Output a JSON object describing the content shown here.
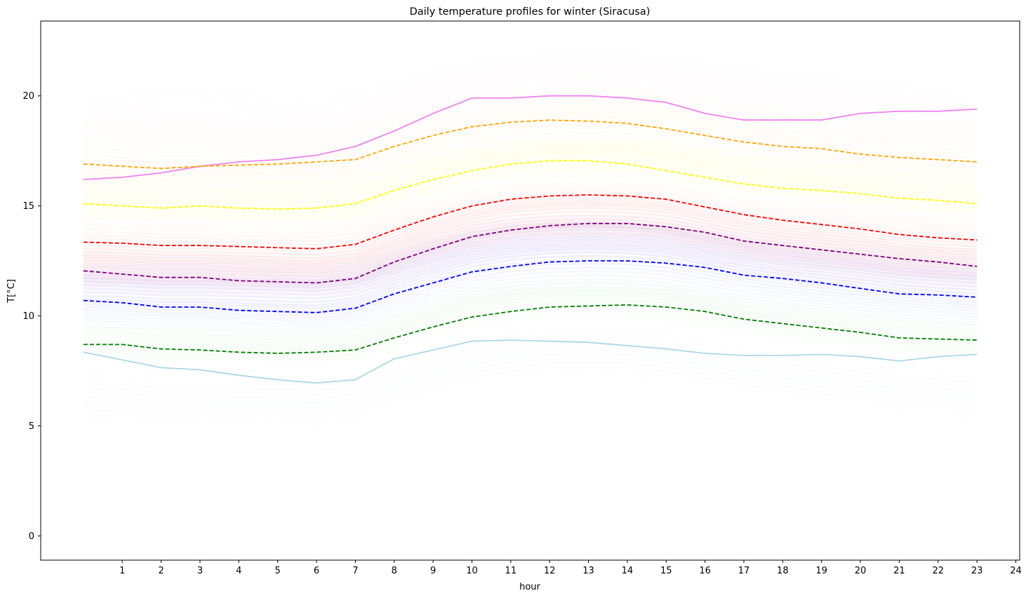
{
  "chart_data": {
    "type": "line",
    "title": "Daily temperature profiles for winter (Siracusa)",
    "xlabel": "hour",
    "ylabel": "T[°C]",
    "xlim": [
      -1.1,
      24.1
    ],
    "ylim": [
      -1.1,
      23.4
    ],
    "xticks": [
      1,
      2,
      3,
      4,
      5,
      6,
      7,
      8,
      9,
      10,
      11,
      12,
      13,
      14,
      15,
      16,
      17,
      18,
      19,
      20,
      21,
      22,
      23,
      24
    ],
    "yticks": [
      0,
      5,
      10,
      15,
      20
    ],
    "grid": false,
    "legend": "none",
    "x": [
      0,
      1,
      2,
      3,
      4,
      5,
      6,
      7,
      8,
      9,
      10,
      11,
      12,
      13,
      14,
      15,
      16,
      17,
      18,
      19,
      20,
      21,
      22,
      23
    ],
    "series": [
      {
        "color": "#ee82ee",
        "dashed": false,
        "values": [
          16.2,
          16.3,
          16.5,
          16.8,
          17.0,
          17.1,
          17.3,
          17.7,
          18.4,
          19.2,
          19.9,
          19.9,
          20.0,
          20.0,
          19.9,
          19.7,
          19.2,
          18.9,
          18.9,
          18.9,
          19.2,
          19.3,
          19.3,
          19.4
        ]
      },
      {
        "color": "#ffa500",
        "dashed": true,
        "values": [
          16.9,
          16.8,
          16.7,
          16.8,
          16.85,
          16.9,
          17.0,
          17.1,
          17.7,
          18.2,
          18.6,
          18.8,
          18.9,
          18.85,
          18.75,
          18.5,
          18.2,
          17.9,
          17.7,
          17.6,
          17.35,
          17.2,
          17.1,
          17.0
        ]
      },
      {
        "color": "#ffff00",
        "dashed": true,
        "values": [
          15.1,
          15.0,
          14.9,
          15.0,
          14.9,
          14.85,
          14.9,
          15.1,
          15.7,
          16.2,
          16.6,
          16.9,
          17.05,
          17.05,
          16.9,
          16.6,
          16.3,
          16.0,
          15.8,
          15.7,
          15.55,
          15.35,
          15.25,
          15.1
        ]
      },
      {
        "color": "#ff0000",
        "dashed": true,
        "values": [
          13.35,
          13.3,
          13.2,
          13.2,
          13.15,
          13.1,
          13.05,
          13.25,
          13.9,
          14.5,
          15.0,
          15.3,
          15.45,
          15.5,
          15.45,
          15.3,
          14.95,
          14.6,
          14.35,
          14.15,
          13.95,
          13.7,
          13.55,
          13.45
        ]
      },
      {
        "color": "#800080",
        "dashed": true,
        "values": [
          12.05,
          11.9,
          11.75,
          11.75,
          11.6,
          11.55,
          11.5,
          11.7,
          12.45,
          13.05,
          13.6,
          13.9,
          14.1,
          14.2,
          14.2,
          14.05,
          13.8,
          13.4,
          13.2,
          13.0,
          12.8,
          12.6,
          12.45,
          12.25
        ]
      },
      {
        "color": "#0000ff",
        "dashed": true,
        "values": [
          10.7,
          10.6,
          10.4,
          10.4,
          10.25,
          10.2,
          10.15,
          10.35,
          11.0,
          11.5,
          12.0,
          12.25,
          12.45,
          12.5,
          12.5,
          12.4,
          12.2,
          11.85,
          11.7,
          11.5,
          11.25,
          11.0,
          10.95,
          10.85
        ]
      },
      {
        "color": "#008000",
        "dashed": true,
        "values": [
          8.7,
          8.7,
          8.5,
          8.45,
          8.35,
          8.3,
          8.35,
          8.45,
          9.0,
          9.5,
          9.95,
          10.2,
          10.4,
          10.45,
          10.5,
          10.4,
          10.2,
          9.85,
          9.65,
          9.45,
          9.25,
          9.0,
          8.95,
          8.9
        ]
      },
      {
        "color": "#add8e6",
        "dashed": false,
        "values": [
          8.35,
          8.0,
          7.65,
          7.55,
          7.3,
          7.1,
          6.95,
          7.1,
          8.05,
          8.45,
          8.85,
          8.9,
          8.85,
          8.8,
          8.65,
          8.5,
          8.3,
          8.2,
          8.2,
          8.25,
          8.15,
          7.95,
          8.15,
          8.25
        ]
      }
    ],
    "background_bands": [
      {
        "color": "#ff8a8a",
        "center": 13.6,
        "spread": 1.4,
        "alpha": 0.28
      },
      {
        "color": "#8f8fff",
        "center": 11.6,
        "spread": 1.5,
        "alpha": 0.26
      },
      {
        "color": "#b05cb0",
        "center": 12.6,
        "spread": 0.9,
        "alpha": 0.18
      },
      {
        "color": "#ffff60",
        "center": 16.0,
        "spread": 1.2,
        "alpha": 0.2
      },
      {
        "color": "#ffc060",
        "center": 17.6,
        "spread": 1.6,
        "alpha": 0.12
      },
      {
        "color": "#ffb0b0",
        "center": 19.6,
        "spread": 1.4,
        "alpha": 0.07
      },
      {
        "color": "#70c070",
        "center": 9.6,
        "spread": 1.1,
        "alpha": 0.1
      },
      {
        "color": "#d0d8d8",
        "center": 7.0,
        "spread": 1.8,
        "alpha": 0.1
      }
    ]
  }
}
